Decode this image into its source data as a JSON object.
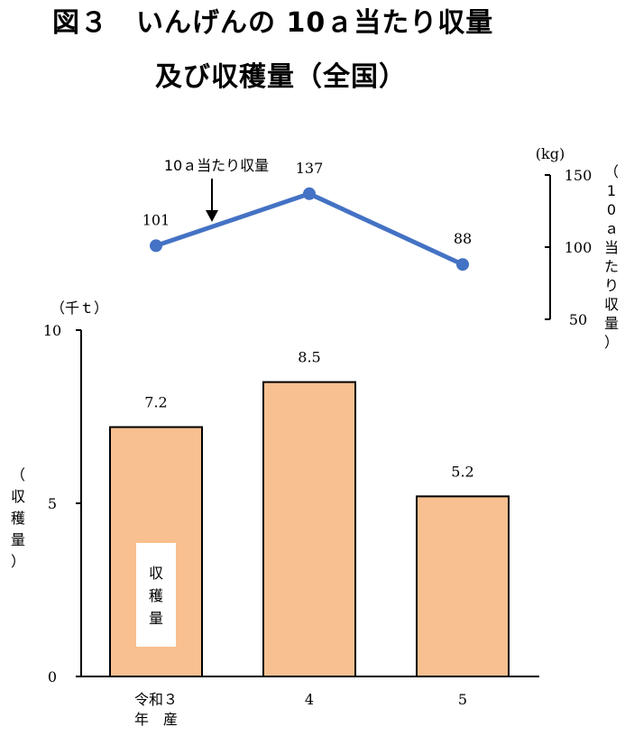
{
  "title": {
    "line1": "図３　いんげんの 10ａ当たり収量",
    "line2": "及び収穫量（全国）"
  },
  "chart_data": {
    "type": "bar+line",
    "categories": [
      "令和３\n年　産",
      "4",
      "5"
    ],
    "bar_series": {
      "name": "収穫量",
      "values": [
        7.2,
        8.5,
        5.2
      ],
      "value_labels": [
        "7.2",
        "8.5",
        "5.2"
      ],
      "unit": "（千ｔ）",
      "axis_label": "（収穫量）",
      "ylim": [
        0,
        10
      ],
      "ticks": [
        0,
        5,
        10
      ],
      "color": "#f8c090"
    },
    "line_series": {
      "name": "10ａ当たり収量",
      "values": [
        101,
        137,
        88
      ],
      "value_labels": [
        "101",
        "137",
        "88"
      ],
      "unit": "(kg)",
      "axis_label": "（10ａ当たり収量）",
      "ylim": [
        50,
        150
      ],
      "ticks": [
        50,
        100,
        150
      ],
      "color": "#4472c4"
    },
    "legend_position": "inside-bar-1 and arrow-annotation",
    "grid": false
  }
}
